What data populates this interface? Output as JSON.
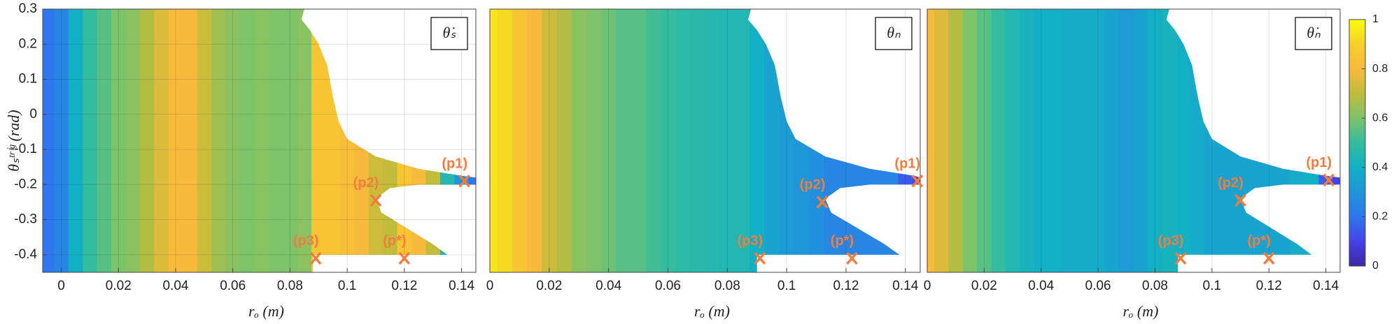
{
  "chart_data": [
    {
      "type": "heatmap",
      "title": "θ̇ₛ",
      "x_label": "rₒ (m)",
      "y_label": "θₛᵗʳⁱᵍ (rad)",
      "xlim": [
        -0.0065,
        0.145
      ],
      "ylim": [
        -0.45,
        0.3
      ],
      "xticks": [
        0,
        0.02,
        0.04,
        0.06,
        0.08,
        0.1,
        0.12,
        0.14
      ],
      "yticks": [
        -0.4,
        -0.3,
        -0.2,
        -0.1,
        0,
        0.1,
        0.2,
        0.3
      ],
      "grid": true,
      "clim": [
        0,
        1
      ],
      "x": [
        -0.005,
        0,
        0.005,
        0.01,
        0.015,
        0.02,
        0.025,
        0.03,
        0.035,
        0.04,
        0.045,
        0.05,
        0.055,
        0.06,
        0.065,
        0.07,
        0.075,
        0.08,
        0.085,
        0.09,
        0.095,
        0.1,
        0.105,
        0.11,
        0.115,
        0.12,
        0.125,
        0.13,
        0.135,
        0.14,
        0.145
      ],
      "values": [
        0.2,
        0.25,
        0.4,
        0.5,
        0.55,
        0.6,
        0.62,
        0.68,
        0.75,
        0.8,
        0.8,
        0.72,
        0.65,
        0.62,
        0.6,
        0.62,
        0.6,
        0.6,
        0.62,
        0.85,
        0.85,
        0.82,
        0.8,
        0.72,
        0.7,
        0.85,
        0.8,
        0.7,
        0.45,
        0.3,
        0.2
      ],
      "region": {
        "x": [
          0.085,
          0.084,
          0.087,
          0.09,
          0.093,
          0.095,
          0.097,
          0.1,
          0.11,
          0.125,
          0.14,
          0.145,
          0.145,
          0.125,
          0.115,
          0.11,
          0.112,
          0.12,
          0.13,
          0.135,
          0.088,
          0.088,
          0.145,
          0.145
        ],
        "y": [
          0.3,
          0.27,
          0.24,
          0.2,
          0.14,
          0.05,
          -0.02,
          -0.07,
          -0.12,
          -0.155,
          -0.175,
          -0.18,
          -0.2,
          -0.2,
          -0.21,
          -0.24,
          -0.28,
          -0.32,
          -0.37,
          -0.4,
          -0.4,
          -0.45,
          -0.45,
          0.3
        ]
      },
      "points": [
        {
          "label": "(p1)",
          "x": 0.141,
          "y": -0.19
        },
        {
          "label": "(p2)",
          "x": 0.11,
          "y": -0.245
        },
        {
          "label": "(p3)",
          "x": 0.089,
          "y": -0.41
        },
        {
          "label": "(p*)",
          "x": 0.12,
          "y": -0.41
        }
      ]
    },
    {
      "type": "heatmap",
      "title": "θₙ",
      "x_label": "rₒ (m)",
      "xlim": [
        0,
        0.145
      ],
      "ylim": [
        -0.45,
        0.3
      ],
      "xticks": [
        0,
        0.02,
        0.04,
        0.06,
        0.08,
        0.1,
        0.12,
        0.14
      ],
      "grid": true,
      "clim": [
        0,
        1
      ],
      "x": [
        0,
        0.005,
        0.01,
        0.015,
        0.02,
        0.025,
        0.03,
        0.035,
        0.04,
        0.045,
        0.05,
        0.055,
        0.06,
        0.065,
        0.07,
        0.075,
        0.08,
        0.085,
        0.09,
        0.095,
        0.1,
        0.105,
        0.11,
        0.115,
        0.12,
        0.125,
        0.13,
        0.135,
        0.14,
        0.145
      ],
      "values": [
        0.95,
        0.92,
        0.85,
        0.8,
        0.72,
        0.68,
        0.62,
        0.6,
        0.58,
        0.55,
        0.55,
        0.52,
        0.5,
        0.48,
        0.47,
        0.46,
        0.45,
        0.45,
        0.4,
        0.35,
        0.32,
        0.3,
        0.28,
        0.25,
        0.25,
        0.25,
        0.25,
        0.25,
        0.15,
        0.1
      ],
      "region": {
        "x": [
          0.088,
          0.087,
          0.09,
          0.093,
          0.096,
          0.098,
          0.1,
          0.103,
          0.113,
          0.128,
          0.143,
          0.145,
          0.145,
          0.128,
          0.118,
          0.113,
          0.115,
          0.123,
          0.133,
          0.138,
          0.09,
          0.09,
          0.145,
          0.145
        ],
        "y": [
          0.3,
          0.27,
          0.24,
          0.2,
          0.14,
          0.05,
          -0.02,
          -0.07,
          -0.12,
          -0.155,
          -0.175,
          -0.18,
          -0.2,
          -0.2,
          -0.21,
          -0.24,
          -0.28,
          -0.32,
          -0.37,
          -0.4,
          -0.4,
          -0.45,
          -0.45,
          0.3
        ]
      },
      "points": [
        {
          "label": "(p1)",
          "x": 0.144,
          "y": -0.19
        },
        {
          "label": "(p2)",
          "x": 0.112,
          "y": -0.25
        },
        {
          "label": "(p3)",
          "x": 0.091,
          "y": -0.41
        },
        {
          "label": "(p*)",
          "x": 0.122,
          "y": -0.41
        }
      ]
    },
    {
      "type": "heatmap",
      "title": "θ̇ₙ",
      "x_label": "rₒ (m)",
      "xlim": [
        0,
        0.145
      ],
      "ylim": [
        -0.45,
        0.3
      ],
      "xticks": [
        0,
        0.02,
        0.04,
        0.06,
        0.08,
        0.1,
        0.12,
        0.14
      ],
      "grid": true,
      "clim": [
        0,
        1
      ],
      "x": [
        0,
        0.005,
        0.01,
        0.015,
        0.02,
        0.025,
        0.03,
        0.035,
        0.04,
        0.045,
        0.05,
        0.055,
        0.06,
        0.065,
        0.07,
        0.075,
        0.08,
        0.085,
        0.09,
        0.095,
        0.1,
        0.105,
        0.11,
        0.115,
        0.12,
        0.125,
        0.13,
        0.135,
        0.14,
        0.145
      ],
      "values": [
        0.8,
        0.75,
        0.68,
        0.6,
        0.55,
        0.5,
        0.45,
        0.42,
        0.4,
        0.4,
        0.38,
        0.38,
        0.38,
        0.35,
        0.32,
        0.35,
        0.4,
        0.42,
        0.4,
        0.38,
        0.35,
        0.35,
        0.35,
        0.35,
        0.35,
        0.35,
        0.38,
        0.4,
        0.15,
        0.1
      ],
      "region": {
        "x": [
          0.085,
          0.084,
          0.087,
          0.09,
          0.093,
          0.095,
          0.097,
          0.1,
          0.11,
          0.125,
          0.14,
          0.145,
          0.145,
          0.125,
          0.115,
          0.11,
          0.112,
          0.12,
          0.13,
          0.135,
          0.088,
          0.088,
          0.145,
          0.145
        ],
        "y": [
          0.3,
          0.27,
          0.24,
          0.2,
          0.14,
          0.05,
          -0.02,
          -0.07,
          -0.12,
          -0.155,
          -0.175,
          -0.18,
          -0.2,
          -0.2,
          -0.21,
          -0.24,
          -0.28,
          -0.32,
          -0.37,
          -0.4,
          -0.4,
          -0.45,
          -0.45,
          0.3
        ]
      },
      "points": [
        {
          "label": "(p1)",
          "x": 0.141,
          "y": -0.187
        },
        {
          "label": "(p2)",
          "x": 0.11,
          "y": -0.245
        },
        {
          "label": "(p3)",
          "x": 0.089,
          "y": -0.41
        },
        {
          "label": "(p*)",
          "x": 0.12,
          "y": -0.41
        }
      ],
      "colorbar": {
        "lim": [
          0,
          1
        ],
        "ticks": [
          0,
          0.2,
          0.4,
          0.6,
          0.8,
          1
        ]
      }
    }
  ]
}
